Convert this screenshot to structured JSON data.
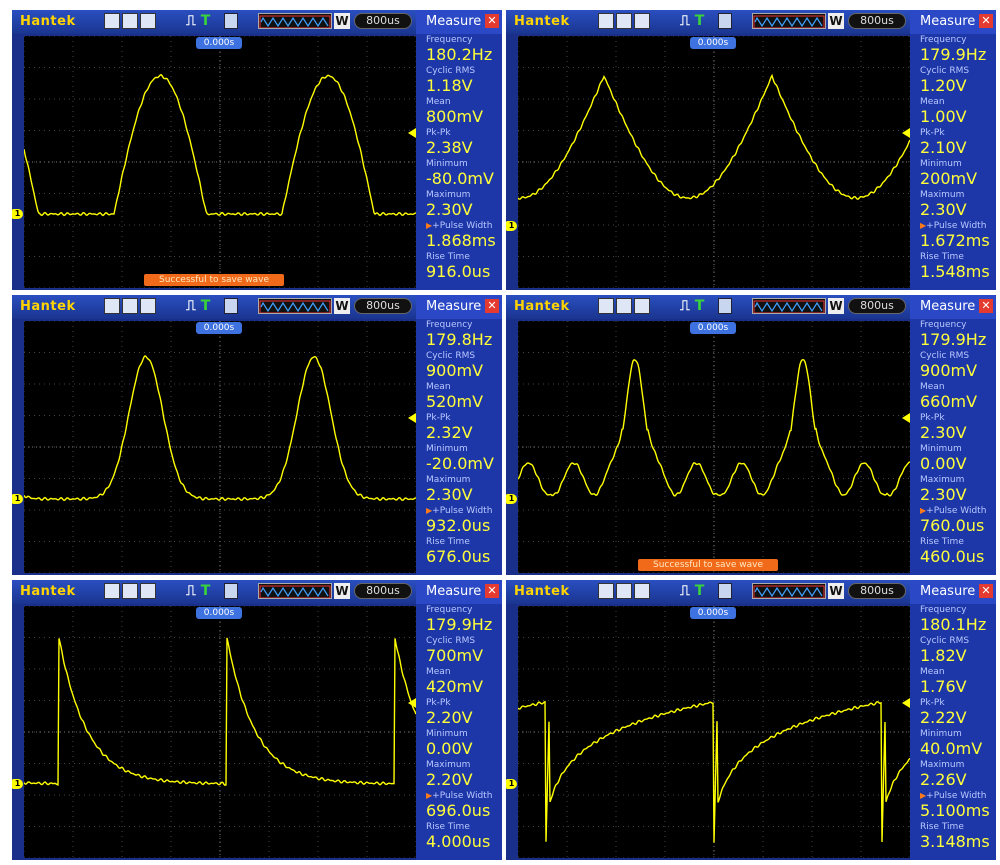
{
  "common": {
    "brand": "Hantek",
    "timebase": "800us",
    "delay": "0.000s",
    "measure_title": "Measure",
    "channel": "1",
    "w_label": "W"
  },
  "colors": {
    "trace": "#ffff00",
    "screen": "#000000",
    "accent": "#1d36a8"
  },
  "panels": [
    {
      "measurements": [
        {
          "label": "Frequency",
          "value": "180.2Hz"
        },
        {
          "label": "Cyclic RMS",
          "value": "1.18V"
        },
        {
          "label": "Mean",
          "value": "800mV"
        },
        {
          "label": "Pk-Pk",
          "value": "2.38V"
        },
        {
          "label": "Minimum",
          "value": "-80.0mV"
        },
        {
          "label": "Maximum",
          "value": "2.30V"
        },
        {
          "label": "+Pulse Width",
          "value": "1.868ms"
        },
        {
          "label": "Rise Time",
          "value": "916.0us"
        }
      ],
      "toast": "Successful to save wave"
    },
    {
      "measurements": [
        {
          "label": "Frequency",
          "value": "179.9Hz"
        },
        {
          "label": "Cyclic RMS",
          "value": "1.20V"
        },
        {
          "label": "Mean",
          "value": "1.00V"
        },
        {
          "label": "Pk-Pk",
          "value": "2.10V"
        },
        {
          "label": "Minimum",
          "value": "200mV"
        },
        {
          "label": "Maximum",
          "value": "2.30V"
        },
        {
          "label": "+Pulse Width",
          "value": "1.672ms"
        },
        {
          "label": "Rise Time",
          "value": "1.548ms"
        }
      ],
      "toast": ""
    },
    {
      "measurements": [
        {
          "label": "Frequency",
          "value": "179.8Hz"
        },
        {
          "label": "Cyclic RMS",
          "value": "900mV"
        },
        {
          "label": "Mean",
          "value": "520mV"
        },
        {
          "label": "Pk-Pk",
          "value": "2.32V"
        },
        {
          "label": "Minimum",
          "value": "-20.0mV"
        },
        {
          "label": "Maximum",
          "value": "2.30V"
        },
        {
          "label": "+Pulse Width",
          "value": "932.0us"
        },
        {
          "label": "Rise Time",
          "value": "676.0us"
        }
      ],
      "toast": ""
    },
    {
      "measurements": [
        {
          "label": "Frequency",
          "value": "179.9Hz"
        },
        {
          "label": "Cyclic RMS",
          "value": "900mV"
        },
        {
          "label": "Mean",
          "value": "660mV"
        },
        {
          "label": "Pk-Pk",
          "value": "2.30V"
        },
        {
          "label": "Minimum",
          "value": "0.00V"
        },
        {
          "label": "Maximum",
          "value": "2.30V"
        },
        {
          "label": "+Pulse Width",
          "value": "760.0us"
        },
        {
          "label": "Rise Time",
          "value": "460.0us"
        }
      ],
      "toast": "Successful to save wave"
    },
    {
      "measurements": [
        {
          "label": "Frequency",
          "value": "179.9Hz"
        },
        {
          "label": "Cyclic RMS",
          "value": "700mV"
        },
        {
          "label": "Mean",
          "value": "420mV"
        },
        {
          "label": "Pk-Pk",
          "value": "2.20V"
        },
        {
          "label": "Minimum",
          "value": "0.00V"
        },
        {
          "label": "Maximum",
          "value": "2.20V"
        },
        {
          "label": "+Pulse Width",
          "value": "696.0us"
        },
        {
          "label": "Rise Time",
          "value": "4.000us"
        }
      ],
      "toast": ""
    },
    {
      "measurements": [
        {
          "label": "Frequency",
          "value": "180.1Hz"
        },
        {
          "label": "Cyclic RMS",
          "value": "1.82V"
        },
        {
          "label": "Mean",
          "value": "1.76V"
        },
        {
          "label": "Pk-Pk",
          "value": "2.22V"
        },
        {
          "label": "Minimum",
          "value": "40.0mV"
        },
        {
          "label": "Maximum",
          "value": "2.26V"
        },
        {
          "label": "+Pulse Width",
          "value": "5.100ms"
        },
        {
          "label": "Rise Time",
          "value": "3.148ms"
        }
      ],
      "toast": ""
    }
  ]
}
